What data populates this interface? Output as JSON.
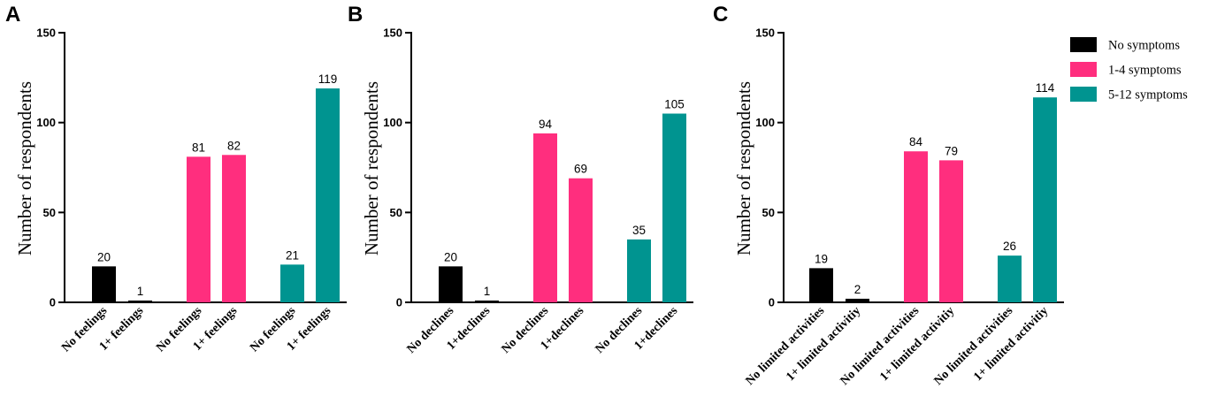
{
  "figure": {
    "legend": [
      {
        "label": "No symptoms",
        "color": "#000000"
      },
      {
        "label": "1-4 symptoms",
        "color": "#ff2e7e"
      },
      {
        "label": "5-12 symptoms",
        "color": "#009490"
      }
    ]
  },
  "chart_data": [
    {
      "type": "bar",
      "panel": "A",
      "ylabel": "Number of respondents",
      "ylim": [
        0,
        150
      ],
      "yticks": [
        "0",
        "50",
        "100",
        "150"
      ],
      "categories": [
        "No feelings",
        "1+ feelings",
        "No feelings",
        "1+ feelings",
        "No feelings",
        "1+ feelings"
      ],
      "groups": [
        "No symptoms",
        "No symptoms",
        "1-4 symptoms",
        "1-4 symptoms",
        "5-12 symptoms",
        "5-12 symptoms"
      ],
      "values": [
        20,
        1,
        81,
        82,
        21,
        119
      ]
    },
    {
      "type": "bar",
      "panel": "B",
      "ylabel": "Number of respondents",
      "ylim": [
        0,
        150
      ],
      "yticks": [
        "0",
        "50",
        "100",
        "150"
      ],
      "categories": [
        "No declines",
        "1+declines",
        "No declines",
        "1+declines",
        "No declines",
        "1+declines"
      ],
      "groups": [
        "No symptoms",
        "No symptoms",
        "1-4 symptoms",
        "1-4 symptoms",
        "5-12 symptoms",
        "5-12 symptoms"
      ],
      "values": [
        20,
        1,
        94,
        69,
        35,
        105
      ]
    },
    {
      "type": "bar",
      "panel": "C",
      "ylabel": "Number of respondents",
      "ylim": [
        0,
        150
      ],
      "yticks": [
        "0",
        "50",
        "100",
        "150"
      ],
      "categories": [
        "No limited activities",
        "1+ limited activitiy",
        "No limited activities",
        "1+ limited activitiy",
        "No limited activities",
        "1+ limited activitiy"
      ],
      "groups": [
        "No symptoms",
        "No symptoms",
        "1-4 symptoms",
        "1-4 symptoms",
        "5-12 symptoms",
        "5-12 symptoms"
      ],
      "values": [
        19,
        2,
        84,
        79,
        26,
        114
      ]
    }
  ]
}
